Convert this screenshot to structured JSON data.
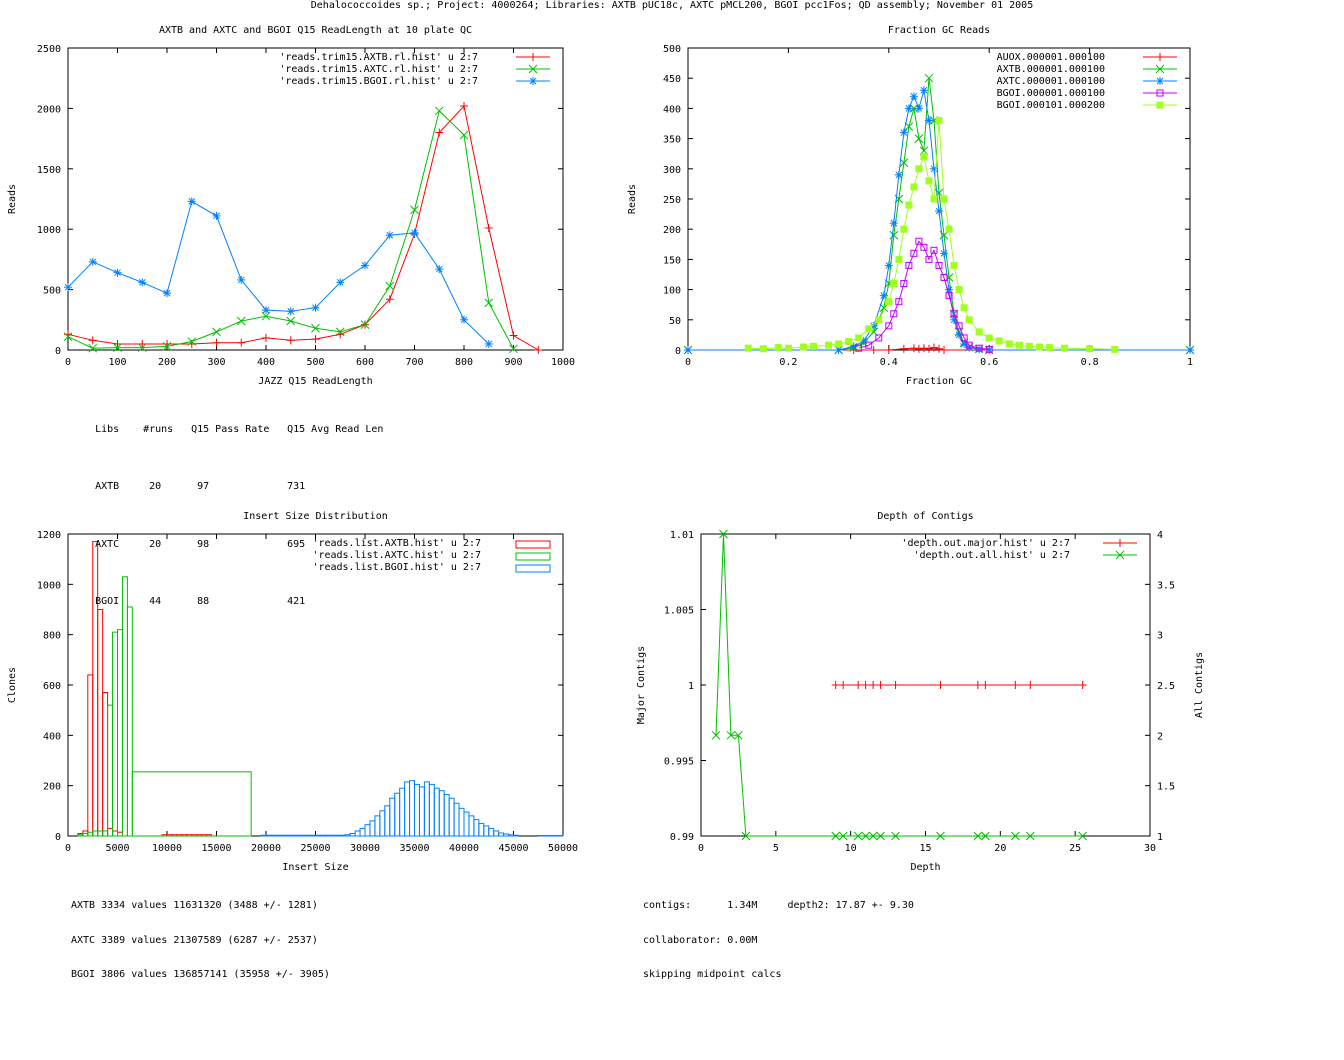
{
  "page_title": "Dehalococcoides sp.; Project: 4000264; Libraries: AXTB pUC18c, AXTC pMCL200, BGOI pcc1Fos; QD assembly; November 01 2005",
  "colors": {
    "red": "#ff0000",
    "green": "#00c000",
    "blue": "#0080ff",
    "magenta": "#c000ff",
    "lime": "#a0ff20"
  },
  "stats": {
    "readlength": {
      "header": [
        "Libs",
        "#runs",
        "Q15 Pass Rate",
        "Q15 Avg Read Len"
      ],
      "rows": [
        [
          "AXTB",
          "20",
          "97",
          "731"
        ],
        [
          "AXTC",
          "20",
          "98",
          "695"
        ],
        [
          "BGOI",
          "44",
          "88",
          "421"
        ]
      ]
    },
    "insert": [
      "AXTB 3334 values 11631320 (3488 +/- 1281)",
      "AXTC 3389 values 21307589 (6287 +/- 2537)",
      "BGOI 3806 values 136857141 (35958 +/- 3905)"
    ],
    "depth": [
      "contigs:      1.34M     depth2: 17.87 +- 9.30",
      "collaborator: 0.00M",
      "skipping midpoint calcs"
    ]
  },
  "chart_data": [
    {
      "type": "line",
      "title": "AXTB and AXTC and BGOI Q15 ReadLength at 10 plate QC",
      "xlabel": "JAZZ Q15 ReadLength",
      "ylabel": "Reads",
      "xlim": [
        0,
        1000
      ],
      "ylim": [
        0,
        2500
      ],
      "xticks": [
        0,
        100,
        200,
        300,
        400,
        500,
        600,
        700,
        800,
        900,
        1000
      ],
      "yticks": [
        0,
        500,
        1000,
        1500,
        2000,
        2500
      ],
      "series": [
        {
          "name": "'reads.trim15.AXTB.rl.hist' u 2:7",
          "color": "#ff0000",
          "marker": "plus",
          "x": [
            0,
            50,
            100,
            150,
            200,
            250,
            300,
            350,
            400,
            450,
            500,
            550,
            600,
            650,
            700,
            750,
            800,
            850,
            900,
            950
          ],
          "y": [
            130,
            80,
            50,
            50,
            50,
            50,
            60,
            60,
            100,
            80,
            90,
            130,
            210,
            420,
            960,
            1800,
            2020,
            1010,
            120,
            0
          ]
        },
        {
          "name": "'reads.trim15.AXTC.rl.hist' u 2:7",
          "color": "#00c000",
          "marker": "cross",
          "x": [
            0,
            50,
            100,
            150,
            200,
            250,
            300,
            350,
            400,
            450,
            500,
            550,
            600,
            650,
            700,
            750,
            800,
            850,
            900
          ],
          "y": [
            110,
            15,
            20,
            20,
            30,
            70,
            150,
            240,
            280,
            240,
            180,
            150,
            210,
            530,
            1160,
            1980,
            1780,
            390,
            10
          ]
        },
        {
          "name": "'reads.trim15.BGOI.rl.hist' u 2:7",
          "color": "#0080ff",
          "marker": "star",
          "x": [
            0,
            50,
            100,
            150,
            200,
            250,
            300,
            350,
            400,
            450,
            500,
            550,
            600,
            650,
            700,
            750,
            800,
            850
          ],
          "y": [
            520,
            730,
            640,
            560,
            470,
            1230,
            1110,
            580,
            330,
            320,
            350,
            560,
            700,
            950,
            970,
            670,
            250,
            50
          ]
        }
      ]
    },
    {
      "type": "scatter",
      "title": "Fraction GC Reads",
      "xlabel": "Fraction GC",
      "ylabel": "Reads",
      "xlim": [
        0,
        1
      ],
      "ylim": [
        0,
        500
      ],
      "xticks": [
        0,
        0.2,
        0.4,
        0.6,
        0.8,
        1
      ],
      "yticks": [
        0,
        50,
        100,
        150,
        200,
        250,
        300,
        350,
        400,
        450,
        500
      ],
      "series": [
        {
          "name": "AUOX.000001.000100",
          "color": "#ff0000",
          "marker": "plus",
          "x": [
            0,
            0.33,
            0.37,
            0.4,
            0.43,
            0.45,
            0.46,
            0.47,
            0.48,
            0.49,
            0.5,
            0.51,
            1
          ],
          "y": [
            0,
            0,
            0,
            0,
            2,
            3,
            2,
            3,
            2,
            4,
            2,
            0,
            0
          ]
        },
        {
          "name": "AXTB.000001.000100",
          "color": "#00c000",
          "marker": "cross",
          "x": [
            0,
            0.3,
            0.33,
            0.35,
            0.37,
            0.39,
            0.4,
            0.41,
            0.42,
            0.43,
            0.44,
            0.45,
            0.46,
            0.47,
            0.48,
            0.49,
            0.5,
            0.51,
            0.52,
            0.53,
            0.54,
            0.55,
            0.56,
            0.58,
            0.6,
            1
          ],
          "y": [
            0,
            0,
            4,
            12,
            30,
            70,
            110,
            190,
            250,
            310,
            370,
            400,
            350,
            330,
            450,
            380,
            260,
            190,
            120,
            60,
            30,
            12,
            5,
            2,
            0,
            0
          ]
        },
        {
          "name": "AXTC.000001.000100",
          "color": "#0080ff",
          "marker": "star",
          "x": [
            0,
            0.3,
            0.33,
            0.35,
            0.37,
            0.39,
            0.4,
            0.41,
            0.42,
            0.43,
            0.44,
            0.45,
            0.46,
            0.47,
            0.48,
            0.49,
            0.5,
            0.51,
            0.52,
            0.53,
            0.54,
            0.55,
            0.56,
            0.58,
            0.6,
            1
          ],
          "y": [
            0,
            0,
            6,
            15,
            40,
            90,
            140,
            210,
            290,
            360,
            400,
            420,
            400,
            430,
            380,
            300,
            230,
            160,
            100,
            50,
            25,
            10,
            4,
            1,
            0,
            0
          ]
        },
        {
          "name": "BGOI.000001.000100",
          "color": "#c000ff",
          "marker": "square",
          "x": [
            0.34,
            0.36,
            0.38,
            0.4,
            0.41,
            0.42,
            0.43,
            0.44,
            0.45,
            0.46,
            0.47,
            0.48,
            0.49,
            0.5,
            0.51,
            0.52,
            0.53,
            0.54,
            0.55,
            0.56,
            0.58,
            0.6
          ],
          "y": [
            3,
            8,
            20,
            40,
            60,
            80,
            110,
            140,
            160,
            180,
            170,
            150,
            165,
            140,
            120,
            90,
            60,
            40,
            20,
            8,
            3,
            1
          ]
        },
        {
          "name": "BGOI.000101.000200",
          "color": "#a0ff20",
          "marker": "filled-square",
          "x": [
            0.12,
            0.15,
            0.18,
            0.2,
            0.23,
            0.25,
            0.28,
            0.3,
            0.32,
            0.34,
            0.36,
            0.38,
            0.4,
            0.41,
            0.42,
            0.43,
            0.44,
            0.45,
            0.46,
            0.47,
            0.48,
            0.49,
            0.5,
            0.51,
            0.52,
            0.53,
            0.54,
            0.55,
            0.56,
            0.58,
            0.6,
            0.62,
            0.64,
            0.66,
            0.68,
            0.7,
            0.72,
            0.75,
            0.8,
            0.85
          ],
          "y": [
            3,
            2,
            4,
            3,
            5,
            6,
            8,
            10,
            14,
            20,
            35,
            50,
            80,
            110,
            150,
            200,
            240,
            270,
            300,
            320,
            280,
            250,
            380,
            250,
            200,
            140,
            100,
            70,
            50,
            30,
            20,
            15,
            10,
            8,
            6,
            5,
            4,
            3,
            2,
            1
          ]
        }
      ]
    },
    {
      "type": "histogram",
      "title": "Insert Size Distribution",
      "xlabel": "Insert Size",
      "ylabel": "Clones",
      "xlim": [
        0,
        50000
      ],
      "ylim": [
        0,
        1200
      ],
      "xticks": [
        0,
        5000,
        10000,
        15000,
        20000,
        25000,
        30000,
        35000,
        40000,
        45000,
        50000
      ],
      "yticks": [
        0,
        200,
        400,
        600,
        800,
        1000,
        1200
      ],
      "bin_width": 500,
      "series": [
        {
          "name": "'reads.list.AXTB.hist' u 2:7",
          "color": "#ff0000",
          "bins": [
            [
              1000,
              10
            ],
            [
              1500,
              20
            ],
            [
              2000,
              640
            ],
            [
              2500,
              1170
            ],
            [
              3000,
              900
            ],
            [
              3500,
              570
            ],
            [
              4000,
              30
            ],
            [
              4500,
              20
            ],
            [
              5000,
              15
            ],
            [
              9500,
              5
            ],
            [
              10000,
              5
            ],
            [
              10500,
              5
            ],
            [
              11000,
              5
            ],
            [
              11500,
              5
            ],
            [
              12000,
              5
            ],
            [
              12500,
              5
            ],
            [
              13000,
              5
            ],
            [
              13500,
              5
            ],
            [
              14000,
              5
            ]
          ]
        },
        {
          "name": "'reads.list.AXTC.hist' u 2:7",
          "color": "#00c000",
          "bins": [
            [
              1000,
              5
            ],
            [
              1500,
              10
            ],
            [
              2000,
              15
            ],
            [
              2500,
              20
            ],
            [
              3000,
              20
            ],
            [
              3500,
              20
            ],
            [
              4000,
              520
            ],
            [
              4500,
              810
            ],
            [
              5000,
              820
            ],
            [
              5500,
              1030
            ],
            [
              6000,
              910
            ],
            [
              6500,
              255,
              12000
            ]
          ]
        },
        {
          "name": "'reads.list.BGOI.hist' u 2:7",
          "color": "#0080ff",
          "bins": [
            [
              19500,
              3
            ],
            [
              20000,
              3
            ],
            [
              20500,
              3
            ],
            [
              21000,
              3
            ],
            [
              21500,
              3
            ],
            [
              22000,
              3
            ],
            [
              22500,
              3
            ],
            [
              23000,
              3
            ],
            [
              23500,
              3
            ],
            [
              24000,
              3
            ],
            [
              24500,
              3
            ],
            [
              25000,
              3
            ],
            [
              25500,
              3
            ],
            [
              26000,
              3
            ],
            [
              26500,
              3
            ],
            [
              27000,
              3
            ],
            [
              27500,
              3
            ],
            [
              28000,
              5
            ],
            [
              28500,
              10
            ],
            [
              29000,
              20
            ],
            [
              29500,
              30
            ],
            [
              30000,
              45
            ],
            [
              30500,
              60
            ],
            [
              31000,
              80
            ],
            [
              31500,
              100
            ],
            [
              32000,
              120
            ],
            [
              32500,
              150
            ],
            [
              33000,
              170
            ],
            [
              33500,
              190
            ],
            [
              34000,
              215
            ],
            [
              34500,
              220
            ],
            [
              35000,
              205
            ],
            [
              35500,
              195
            ],
            [
              36000,
              215
            ],
            [
              36500,
              205
            ],
            [
              37000,
              190
            ],
            [
              37500,
              180
            ],
            [
              38000,
              165
            ],
            [
              38500,
              150
            ],
            [
              39000,
              130
            ],
            [
              39500,
              110
            ],
            [
              40000,
              95
            ],
            [
              40500,
              80
            ],
            [
              41000,
              65
            ],
            [
              41500,
              50
            ],
            [
              42000,
              40
            ],
            [
              42500,
              30
            ],
            [
              43000,
              20
            ],
            [
              43500,
              12
            ],
            [
              44000,
              8
            ],
            [
              44500,
              5
            ],
            [
              45000,
              3
            ],
            [
              47500,
              2
            ],
            [
              48000,
              2
            ],
            [
              48500,
              2
            ],
            [
              49000,
              2
            ],
            [
              49500,
              2
            ]
          ]
        }
      ]
    },
    {
      "type": "line",
      "title": "Depth of Contigs",
      "xlabel": "Depth",
      "ylabel": "Major Contigs",
      "y2label": "All Contigs",
      "xlim": [
        0,
        30
      ],
      "ylim": [
        0.99,
        1.01
      ],
      "y2lim": [
        1,
        4
      ],
      "xticks": [
        0,
        5,
        10,
        15,
        20,
        25,
        30
      ],
      "yticks": [
        0.99,
        0.995,
        1,
        1.005,
        1.01
      ],
      "y2ticks": [
        1,
        1.5,
        2,
        2.5,
        3,
        3.5,
        4
      ],
      "ytick_labels": [
        "0.99",
        "0.995",
        "1",
        "1.005",
        "1.01"
      ],
      "series": [
        {
          "name": "'depth.out.major.hist' u 2:7",
          "color": "#ff0000",
          "marker": "plus",
          "axis": "y",
          "x": [
            9,
            9.5,
            10.5,
            11,
            11.5,
            12,
            13,
            16,
            18.5,
            19,
            21,
            22,
            25.5
          ],
          "y": [
            1,
            1,
            1,
            1,
            1,
            1,
            1,
            1,
            1,
            1,
            1,
            1,
            1
          ]
        },
        {
          "name": "'depth.out.all.hist' u 2:7",
          "color": "#00c000",
          "marker": "cross",
          "axis": "y2",
          "x": [
            1,
            1.5,
            2,
            2.5,
            3,
            9,
            9.5,
            10.5,
            11,
            11.5,
            12,
            13,
            16,
            18.5,
            19,
            21,
            22,
            25.5
          ],
          "y": [
            2,
            4,
            2,
            2,
            1,
            1,
            1,
            1,
            1,
            1,
            1,
            1,
            1,
            1,
            1,
            1,
            1,
            1
          ]
        }
      ]
    }
  ]
}
